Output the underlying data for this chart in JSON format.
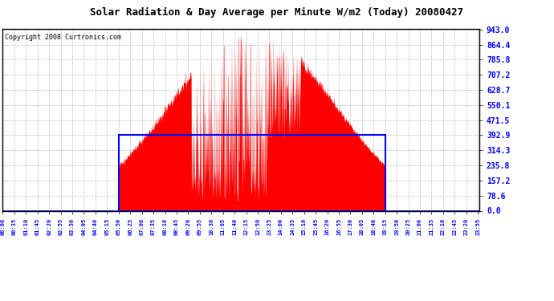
{
  "title": "Solar Radiation & Day Average per Minute W/m2 (Today) 20080427",
  "copyright": "Copyright 2008 Curtronics.com",
  "background_color": "#ffffff",
  "plot_bg_color": "#ffffff",
  "yticks": [
    0.0,
    78.6,
    157.2,
    235.8,
    314.3,
    392.9,
    471.5,
    550.1,
    628.7,
    707.2,
    785.8,
    864.4,
    943.0
  ],
  "ymax": 943.0,
  "ymin": 0.0,
  "bar_color": "#ff0000",
  "avg_line_color": "#0000ff",
  "avg_value": 392.9,
  "sunrise_minute": 351,
  "sunset_minute": 1156,
  "n_minutes": 1440,
  "tick_step": 35,
  "grid_color": "#aaaaaa",
  "title_fontsize": 9,
  "copyright_fontsize": 6
}
